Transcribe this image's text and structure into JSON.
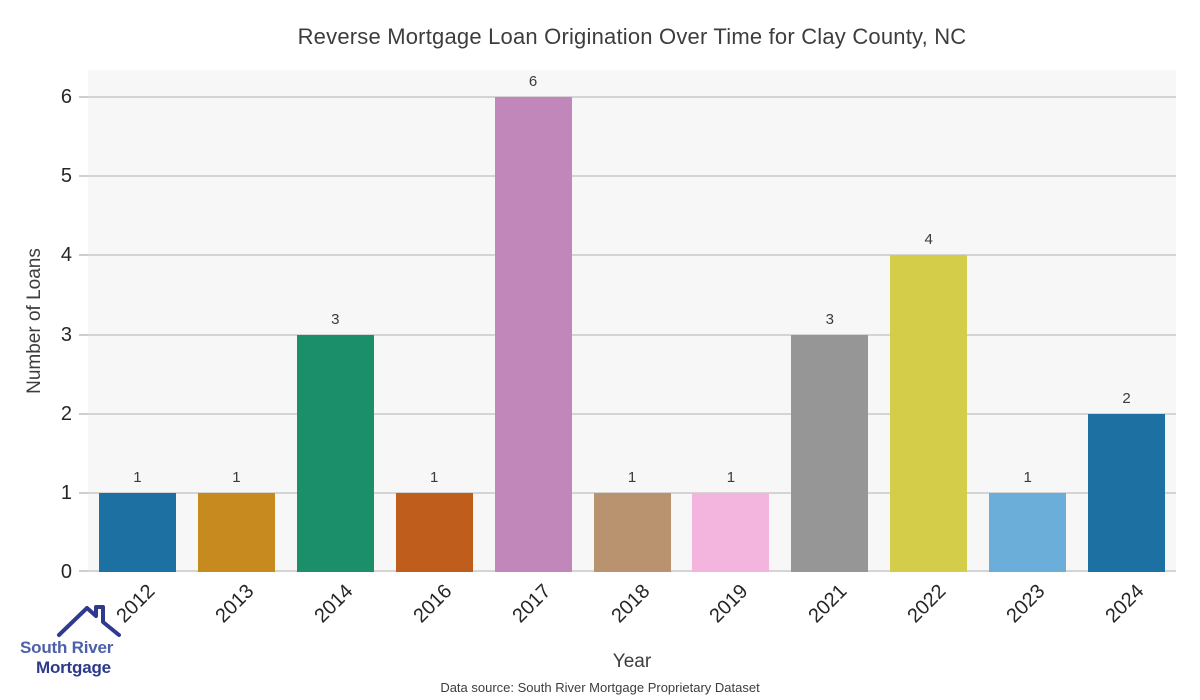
{
  "title": "Reverse Mortgage Loan Origination Over Time for Clay County, NC",
  "footer": {
    "source_note": "Data source: South River Mortgage Proprietary Dataset"
  },
  "logo": {
    "line1": "South River",
    "line2": "Mortgage",
    "icon": "house-roof-icon",
    "color1": "#4c61a8",
    "color2": "#2c3a8c"
  },
  "chart_data": {
    "type": "bar",
    "title": "Reverse Mortgage Loan Origination Over Time for Clay County, NC",
    "xlabel": "Year",
    "ylabel": "Number of Loans",
    "categories": [
      "2012",
      "2013",
      "2014",
      "2016",
      "2017",
      "2018",
      "2019",
      "2021",
      "2022",
      "2023",
      "2024"
    ],
    "values": [
      1,
      1,
      3,
      1,
      6,
      1,
      1,
      3,
      4,
      1,
      2
    ],
    "bar_colors": [
      "#1d70a2",
      "#c78a1e",
      "#1a8f69",
      "#bf5d1d",
      "#c186ba",
      "#b99370",
      "#f3b5de",
      "#969696",
      "#d4cd4a",
      "#6aaed9",
      "#1d70a2"
    ],
    "ylim": [
      0,
      6
    ],
    "yticks": [
      0,
      1,
      2,
      3,
      4,
      5,
      6
    ],
    "grid": true,
    "legend": "none",
    "plot_background": "#f7f7f7",
    "grid_color": "#d4d4d4",
    "tick_label_color": "#262626",
    "value_label_color": "#3a3a3a"
  }
}
